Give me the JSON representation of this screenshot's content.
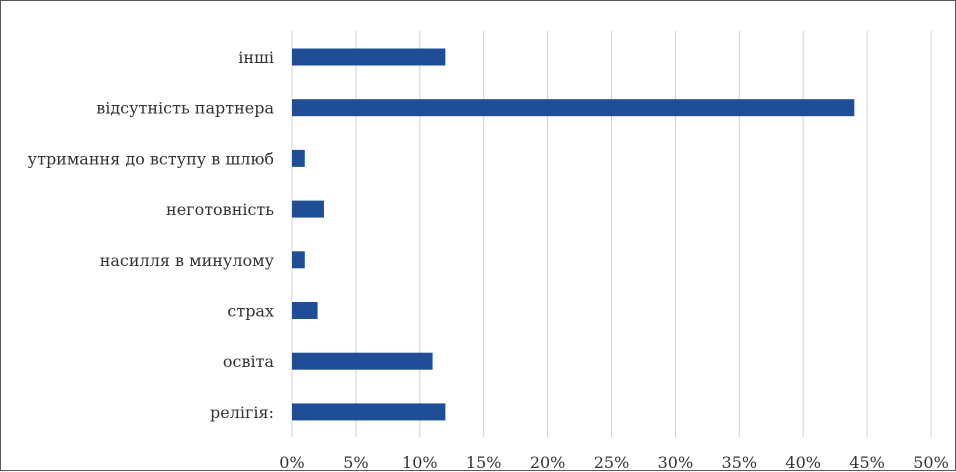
{
  "chart_data": {
    "type": "bar",
    "orientation": "horizontal",
    "categories": [
      "інші",
      "відсутність партнера",
      "утримання до вступу в шлюб",
      "неготовність",
      "насилля в минулому",
      "страх",
      "освіта",
      "релігія:"
    ],
    "values": [
      12,
      44,
      1,
      2.5,
      1,
      2,
      11,
      12
    ],
    "xlim": [
      0,
      50
    ],
    "x_ticks": [
      0,
      5,
      10,
      15,
      20,
      25,
      30,
      35,
      40,
      45,
      50
    ],
    "x_tick_labels": [
      "0%",
      "5%",
      "10%",
      "15%",
      "20%",
      "25%",
      "30%",
      "35%",
      "40%",
      "45%",
      "50%"
    ],
    "title": "",
    "xlabel": "",
    "ylabel": "",
    "grid": "vertical",
    "legend": "none",
    "bar_color": "#1f4e96",
    "grid_color": "#d0d0d0"
  }
}
